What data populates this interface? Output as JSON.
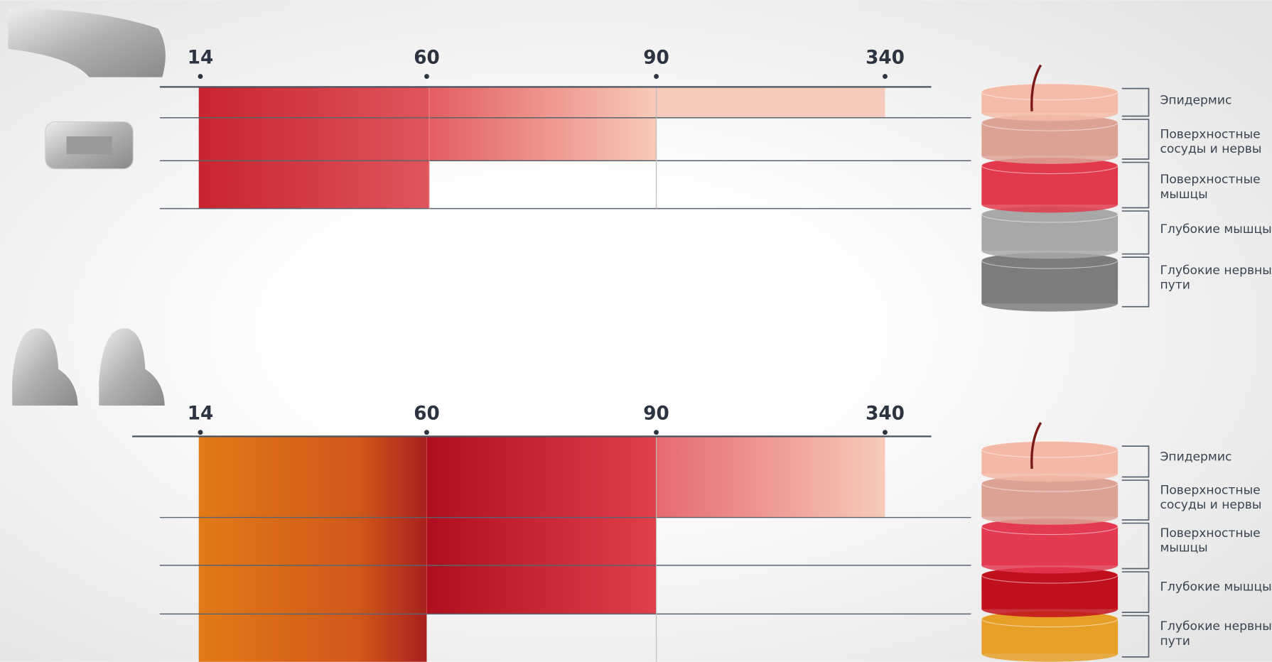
{
  "panels": [
    {
      "ticks": [
        "14",
        "60",
        "90",
        "340"
      ],
      "layers": [
        [
          "Эпидермис"
        ],
        [
          "Поверхностные",
          "сосуды и нервы"
        ],
        [
          "Поверхностные",
          "мышцы"
        ],
        [
          "Глубокие мышцы"
        ],
        [
          "Глубокие нервные",
          "пути"
        ]
      ]
    },
    {
      "ticks": [
        "14",
        "60",
        "90",
        "340"
      ],
      "layers": [
        [
          "Эпидермис"
        ],
        [
          "Поверхностные",
          "сосуды и нервы"
        ],
        [
          "Поверхностные",
          "мышцы"
        ],
        [
          "Глубокие мышцы"
        ],
        [
          "Глубокие нервные",
          "пути"
        ]
      ]
    }
  ]
}
